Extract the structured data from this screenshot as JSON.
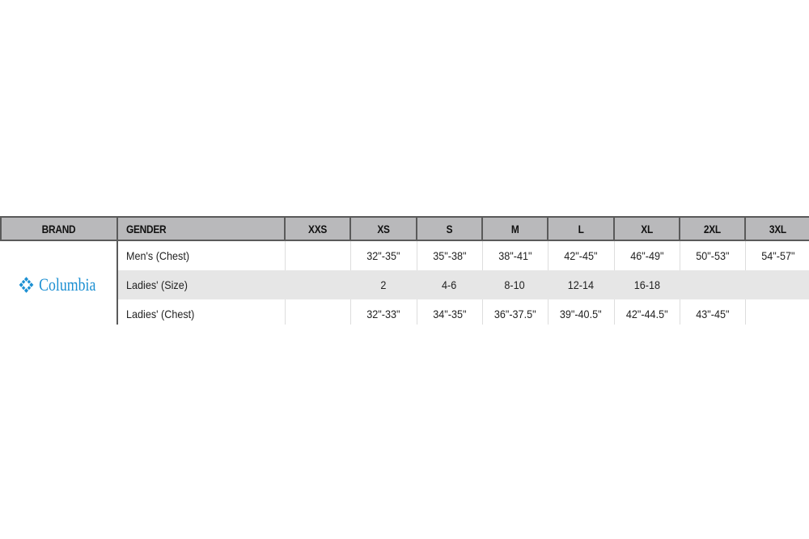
{
  "table": {
    "headers": [
      "BRAND",
      "GENDER",
      "XXS",
      "XS",
      "S",
      "M",
      "L",
      "XL",
      "2XL",
      "3XL"
    ],
    "brand": {
      "name": "Columbia",
      "logo_color": "#1b8fd2",
      "icon": "columbia-diamond-icon"
    },
    "rows": [
      {
        "gender": "Men's (Chest)",
        "values": [
          "",
          "32\"-35\"",
          "35\"-38\"",
          "38\"-41\"",
          "42\"-45\"",
          "46\"-49\"",
          "50\"-53\"",
          "54\"-57\""
        ]
      },
      {
        "gender": "Ladies' (Size)",
        "values": [
          "",
          "2",
          "4-6",
          "8-10",
          "12-14",
          "16-18",
          "",
          ""
        ]
      },
      {
        "gender": "Ladies' (Chest)",
        "values": [
          "",
          "32\"-33\"",
          "34\"-35\"",
          "36\"-37.5\"",
          "39\"-40.5\"",
          "42\"-44.5\"",
          "43\"-45\"",
          ""
        ]
      }
    ]
  }
}
